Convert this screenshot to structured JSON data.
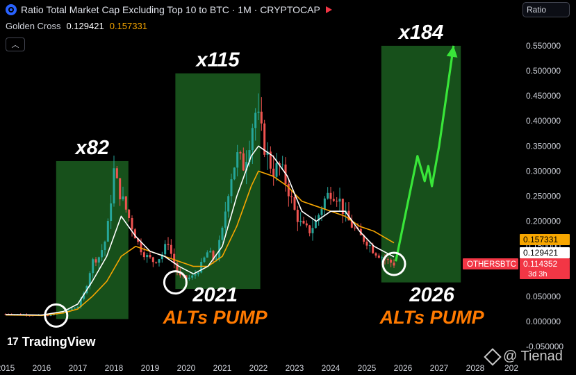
{
  "header": {
    "title": "Ratio Total Market Cap Excluding Top 10 to BTC · 1M · CRYPTOCAP",
    "indicator_name": "Golden Cross",
    "indicator_value_1": "0.129421",
    "indicator_value_2": "0.157331",
    "collapse_glyph": "︿"
  },
  "scale_button": "Ratio",
  "branding": {
    "logo_text": "TradingView",
    "logo_mark": "17",
    "watermark": "@ Tienad"
  },
  "colors": {
    "up": "#26a69a",
    "down": "#ef5350",
    "fast_ma": "#ffffff",
    "slow_ma": "#f7a600",
    "highlight": "#1b5e20",
    "projection": "#39e639",
    "annotation": "#ff7a00"
  },
  "chart_data": {
    "type": "candlestick",
    "title": "Ratio Total Market Cap Excluding Top 10 to BTC",
    "interval": "1M",
    "xlabel": "",
    "ylabel": "",
    "x_ticks": [
      "2015",
      "2016",
      "2017",
      "2018",
      "2019",
      "2020",
      "2021",
      "2022",
      "2023",
      "2024",
      "2025",
      "2026",
      "2027",
      "2028",
      "202"
    ],
    "y_ticks": [
      "0.550000",
      "0.500000",
      "0.450000",
      "0.400000",
      "0.350000",
      "0.300000",
      "0.250000",
      "0.200000",
      "0.150000",
      "0.100000",
      "0.050000",
      "0.000000",
      "-0.050000"
    ],
    "ylim": [
      -0.05,
      0.55
    ],
    "xlim": [
      2015.0,
      2029.0
    ],
    "price_path": [
      [
        2015.0,
        0.015
      ],
      [
        2015.5,
        0.014
      ],
      [
        2016.0,
        0.012
      ],
      [
        2016.3,
        0.013
      ],
      [
        2016.6,
        0.02
      ],
      [
        2016.8,
        0.025
      ],
      [
        2017.0,
        0.03
      ],
      [
        2017.2,
        0.06
      ],
      [
        2017.4,
        0.12
      ],
      [
        2017.6,
        0.13
      ],
      [
        2017.8,
        0.17
      ],
      [
        2018.0,
        0.3
      ],
      [
        2018.1,
        0.27
      ],
      [
        2018.3,
        0.23
      ],
      [
        2018.5,
        0.19
      ],
      [
        2018.7,
        0.15
      ],
      [
        2018.9,
        0.13
      ],
      [
        2019.1,
        0.12
      ],
      [
        2019.3,
        0.13
      ],
      [
        2019.5,
        0.16
      ],
      [
        2019.6,
        0.13
      ],
      [
        2019.8,
        0.09
      ],
      [
        2020.0,
        0.085
      ],
      [
        2020.2,
        0.09
      ],
      [
        2020.4,
        0.11
      ],
      [
        2020.6,
        0.14
      ],
      [
        2020.8,
        0.12
      ],
      [
        2021.0,
        0.18
      ],
      [
        2021.2,
        0.28
      ],
      [
        2021.4,
        0.33
      ],
      [
        2021.6,
        0.31
      ],
      [
        2021.8,
        0.38
      ],
      [
        2021.9,
        0.42
      ],
      [
        2022.0,
        0.4
      ],
      [
        2022.2,
        0.34
      ],
      [
        2022.4,
        0.3
      ],
      [
        2022.6,
        0.31
      ],
      [
        2022.8,
        0.27
      ],
      [
        2023.0,
        0.22
      ],
      [
        2023.2,
        0.19
      ],
      [
        2023.4,
        0.18
      ],
      [
        2023.6,
        0.2
      ],
      [
        2023.8,
        0.24
      ],
      [
        2024.0,
        0.26
      ],
      [
        2024.2,
        0.25
      ],
      [
        2024.4,
        0.21
      ],
      [
        2024.6,
        0.19
      ],
      [
        2024.8,
        0.17
      ],
      [
        2025.0,
        0.16
      ],
      [
        2025.2,
        0.14
      ],
      [
        2025.4,
        0.13
      ],
      [
        2025.6,
        0.12
      ],
      [
        2025.75,
        0.115
      ]
    ],
    "fast_ma": [
      [
        2015.0,
        0.014
      ],
      [
        2016.0,
        0.013
      ],
      [
        2016.6,
        0.02
      ],
      [
        2017.0,
        0.035
      ],
      [
        2017.4,
        0.08
      ],
      [
        2017.8,
        0.13
      ],
      [
        2018.2,
        0.21
      ],
      [
        2018.6,
        0.17
      ],
      [
        2019.0,
        0.14
      ],
      [
        2019.4,
        0.13
      ],
      [
        2019.8,
        0.11
      ],
      [
        2020.2,
        0.095
      ],
      [
        2020.6,
        0.11
      ],
      [
        2021.0,
        0.15
      ],
      [
        2021.4,
        0.25
      ],
      [
        2021.8,
        0.33
      ],
      [
        2022.0,
        0.35
      ],
      [
        2022.4,
        0.33
      ],
      [
        2022.8,
        0.29
      ],
      [
        2023.2,
        0.22
      ],
      [
        2023.6,
        0.2
      ],
      [
        2024.0,
        0.22
      ],
      [
        2024.4,
        0.22
      ],
      [
        2024.8,
        0.18
      ],
      [
        2025.2,
        0.15
      ],
      [
        2025.75,
        0.129
      ]
    ],
    "slow_ma": [
      [
        2015.0,
        0.013
      ],
      [
        2016.0,
        0.012
      ],
      [
        2016.6,
        0.017
      ],
      [
        2017.0,
        0.025
      ],
      [
        2017.4,
        0.05
      ],
      [
        2017.8,
        0.08
      ],
      [
        2018.2,
        0.13
      ],
      [
        2018.6,
        0.15
      ],
      [
        2019.0,
        0.14
      ],
      [
        2019.4,
        0.13
      ],
      [
        2019.8,
        0.12
      ],
      [
        2020.2,
        0.11
      ],
      [
        2020.6,
        0.11
      ],
      [
        2021.0,
        0.13
      ],
      [
        2021.4,
        0.19
      ],
      [
        2021.8,
        0.27
      ],
      [
        2022.0,
        0.3
      ],
      [
        2022.4,
        0.29
      ],
      [
        2022.8,
        0.27
      ],
      [
        2023.2,
        0.24
      ],
      [
        2023.6,
        0.23
      ],
      [
        2024.0,
        0.22
      ],
      [
        2024.4,
        0.21
      ],
      [
        2024.8,
        0.19
      ],
      [
        2025.2,
        0.18
      ],
      [
        2025.75,
        0.157
      ]
    ],
    "projection": [
      [
        2025.8,
        0.12
      ],
      [
        2026.4,
        0.33
      ],
      [
        2026.6,
        0.28
      ],
      [
        2026.7,
        0.31
      ],
      [
        2026.8,
        0.27
      ],
      [
        2027.0,
        0.35
      ],
      [
        2027.4,
        0.55
      ]
    ],
    "zones": [
      {
        "x0": 2016.4,
        "x1": 2018.4,
        "y0": 0.005,
        "y1": 0.32,
        "label": "x82"
      },
      {
        "x0": 2019.7,
        "x1": 2022.05,
        "y0": 0.065,
        "y1": 0.495,
        "label": "x115"
      },
      {
        "x0": 2025.4,
        "x1": 2027.6,
        "y0": 0.078,
        "y1": 0.55,
        "label": "x184"
      }
    ],
    "circles": [
      {
        "x": 2016.4,
        "y": 0.012
      },
      {
        "x": 2019.7,
        "y": 0.078
      },
      {
        "x": 2025.75,
        "y": 0.115
      }
    ],
    "annotations": [
      {
        "year": "2021",
        "text": "ALTs PUMP",
        "x": 2020.8,
        "y": 0.04
      },
      {
        "year": "2026",
        "text": "ALTs PUMP",
        "x": 2026.8,
        "y": 0.04
      }
    ],
    "price_labels": [
      {
        "value": 0.157331,
        "text": "0.157331",
        "bg": "#f7a600",
        "fg": "#000000"
      },
      {
        "value": 0.129421,
        "text": "0.129421",
        "bg": "#ffffff",
        "fg": "#000000"
      },
      {
        "value": 0.114352,
        "text": "0.114352",
        "sub": "3d 3h",
        "bg": "#f23645",
        "fg": "#ffffff",
        "symbol": "OTHERSBTC"
      }
    ]
  }
}
